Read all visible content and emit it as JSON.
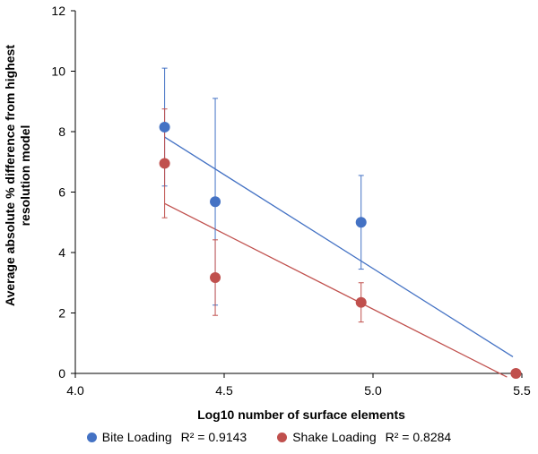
{
  "chart_data": {
    "type": "scatter",
    "title": "",
    "xlabel": "Log10 number of surface elements",
    "ylabel_lines": [
      "Average absolute % difference from highest",
      "resolution model"
    ],
    "xlim": [
      4.0,
      5.5
    ],
    "ylim": [
      0,
      12
    ],
    "x_ticks": [
      "4.0",
      "4.5",
      "5.0",
      "5.5"
    ],
    "y_ticks": [
      "0",
      "2",
      "4",
      "6",
      "8",
      "10",
      "12"
    ],
    "grid": false,
    "legend_position": "bottom",
    "series": [
      {
        "name": "Bite Loading",
        "color": "#4472C4",
        "trend_color": "#4472C4",
        "r2_label": "R² = 0.9143",
        "points": [
          {
            "x": 4.3,
            "y": 8.15,
            "err_plus": 1.95,
            "err_minus": 1.95
          },
          {
            "x": 4.47,
            "y": 5.68,
            "err_plus": 3.42,
            "err_minus": 3.42
          },
          {
            "x": 4.96,
            "y": 5.0,
            "err_plus": 1.55,
            "err_minus": 1.55
          }
        ],
        "trendline": {
          "x_start": 4.3,
          "y_start": 7.82,
          "x_end": 5.47,
          "y_end": 0.55
        }
      },
      {
        "name": "Shake Loading",
        "color": "#C0504D",
        "trend_color": "#C0504D",
        "r2_label": "R² = 0.8284",
        "points": [
          {
            "x": 4.3,
            "y": 6.95,
            "err_plus": 1.8,
            "err_minus": 1.8
          },
          {
            "x": 4.47,
            "y": 3.17,
            "err_plus": 1.25,
            "err_minus": 1.25
          },
          {
            "x": 4.96,
            "y": 2.35,
            "err_plus": 0.65,
            "err_minus": 0.65
          },
          {
            "x": 5.48,
            "y": 0.0,
            "err_plus": 0,
            "err_minus": 0
          }
        ],
        "trendline": {
          "x_start": 4.3,
          "y_start": 5.62,
          "x_end": 5.45,
          "y_end": -0.12
        }
      }
    ]
  }
}
